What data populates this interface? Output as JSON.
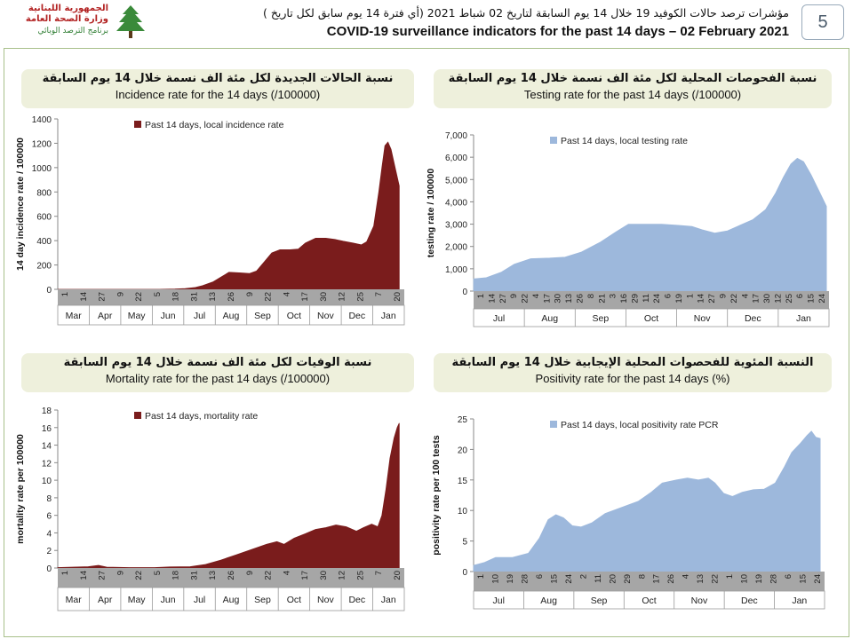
{
  "header": {
    "logo_line1": "الجمهورية اللبنانية",
    "logo_line2": "وزارة الصحة العامة",
    "logo_line3": "برنامج الترصد الوبائي",
    "title_ar": "مؤشرات ترصد حالات الكوفيد 19 خلال 14 يوم السابقة لتاريخ 02 شباط 2021 (أي فترة 14 يوم سابق لكل تاريخ )",
    "title_en": "COVID-19 surveillance indicators for the past 14 days – 02 February 2021",
    "page_number": "5"
  },
  "panels": {
    "incidence": {
      "title_ar": "نسبة الحالات الجديدة لكل مئة الف نسمة خلال 14 يوم السابقة",
      "title_en": "Incidence rate for the 14 days  (/100000)"
    },
    "testing": {
      "title_ar": "نسبة الفحوصات المحلية لكل مئة الف نسمة خلال 14 يوم السابقة",
      "title_en": "Testing rate for the past 14 days (/100000)"
    },
    "mortality": {
      "title_ar": "نسبة الوفيات لكل مئة الف نسمة خلال 14 يوم السابقة",
      "title_en": "Mortality rate for the past 14 days (/100000)"
    },
    "positivity": {
      "title_ar": "النسبة المئوية للفحصوات المحلية الإيجابية خلال 14 يوم السابقة",
      "title_en": "Positivity rate for the past 14 days (%)"
    }
  },
  "chart_data": [
    {
      "id": "incidence",
      "type": "area",
      "color": "#7a1c1c",
      "ylabel": "14 day incidence rate  / 100000",
      "ylim": [
        0,
        1400
      ],
      "yticks": [
        0,
        200,
        400,
        600,
        800,
        1000,
        1200,
        1400
      ],
      "legend": "Past 14 days, local incidence rate",
      "legend_position": "top-left",
      "x_day_labels": [
        "1",
        "14",
        "27",
        "9",
        "22",
        "5",
        "18",
        "31",
        "13",
        "26",
        "9",
        "22",
        "4",
        "17",
        "30",
        "12",
        "25",
        "7",
        "20"
      ],
      "months": [
        "Mar",
        "Apr",
        "May",
        "Jun",
        "Jul",
        "Aug",
        "Sep",
        "Oct",
        "Nov",
        "Dec",
        "Jan"
      ],
      "points": [
        [
          0,
          0
        ],
        [
          100,
          0
        ],
        [
          115,
          2
        ],
        [
          125,
          6
        ],
        [
          135,
          15
        ],
        [
          142,
          30
        ],
        [
          152,
          60
        ],
        [
          160,
          100
        ],
        [
          168,
          140
        ],
        [
          180,
          135
        ],
        [
          188,
          130
        ],
        [
          195,
          150
        ],
        [
          203,
          230
        ],
        [
          210,
          300
        ],
        [
          218,
          325
        ],
        [
          228,
          325
        ],
        [
          236,
          330
        ],
        [
          243,
          380
        ],
        [
          253,
          420
        ],
        [
          263,
          420
        ],
        [
          272,
          410
        ],
        [
          280,
          395
        ],
        [
          290,
          380
        ],
        [
          298,
          365
        ],
        [
          303,
          390
        ],
        [
          310,
          520
        ],
        [
          315,
          800
        ],
        [
          318,
          1000
        ],
        [
          321,
          1180
        ],
        [
          324,
          1210
        ],
        [
          327,
          1150
        ],
        [
          331,
          1000
        ],
        [
          335,
          850
        ]
      ]
    },
    {
      "id": "testing",
      "type": "area",
      "color": "#9db8dc",
      "ylabel": "testing rate / 100000",
      "ylim": [
        0,
        7000
      ],
      "yticks": [
        0,
        1000,
        2000,
        3000,
        4000,
        5000,
        6000,
        7000
      ],
      "ytick_labels": [
        "0",
        "1,000",
        "2,000",
        "3,000",
        "4,000",
        "5,000",
        "6,000",
        "7,000"
      ],
      "legend": "Past 14 days, local testing rate",
      "legend_position": "top-left",
      "x_day_labels": [
        "1",
        "14",
        "27",
        "9",
        "22",
        "4",
        "17",
        "30",
        "13",
        "26",
        "8",
        "21",
        "3",
        "16",
        "29",
        "11",
        "24",
        "6",
        "19",
        "1",
        "14",
        "27",
        "9",
        "22",
        "4",
        "17",
        "30",
        "12",
        "25",
        "6",
        "15",
        "24"
      ],
      "months": [
        "Jul",
        "Aug",
        "Sep",
        "Oct",
        "Nov",
        "Dec",
        "Jan"
      ],
      "points": [
        [
          0,
          550
        ],
        [
          10,
          600
        ],
        [
          22,
          850
        ],
        [
          32,
          1200
        ],
        [
          45,
          1450
        ],
        [
          60,
          1480
        ],
        [
          72,
          1520
        ],
        [
          85,
          1750
        ],
        [
          100,
          2200
        ],
        [
          112,
          2650
        ],
        [
          122,
          3000
        ],
        [
          135,
          3000
        ],
        [
          148,
          3000
        ],
        [
          160,
          2950
        ],
        [
          172,
          2900
        ],
        [
          180,
          2750
        ],
        [
          190,
          2600
        ],
        [
          200,
          2700
        ],
        [
          210,
          2950
        ],
        [
          220,
          3200
        ],
        [
          230,
          3650
        ],
        [
          238,
          4400
        ],
        [
          244,
          5100
        ],
        [
          250,
          5700
        ],
        [
          255,
          5950
        ],
        [
          260,
          5800
        ],
        [
          266,
          5200
        ],
        [
          272,
          4500
        ],
        [
          278,
          3800
        ]
      ]
    },
    {
      "id": "mortality",
      "type": "area",
      "color": "#7a1c1c",
      "ylabel": "mortality rate per 100000",
      "ylim": [
        0,
        18
      ],
      "yticks": [
        0,
        2,
        4,
        6,
        8,
        10,
        12,
        14,
        16,
        18
      ],
      "legend": "Past 14 days, mortality rate",
      "legend_position": "top-left",
      "x_day_labels": [
        "1",
        "14",
        "27",
        "9",
        "22",
        "5",
        "18",
        "31",
        "13",
        "26",
        "9",
        "22",
        "4",
        "17",
        "30",
        "12",
        "25",
        "7",
        "20"
      ],
      "months": [
        "Mar",
        "Apr",
        "May",
        "Jun",
        "Jul",
        "Aug",
        "Sep",
        "Oct",
        "Nov",
        "Dec",
        "Jan"
      ],
      "points": [
        [
          0,
          0.05
        ],
        [
          30,
          0.15
        ],
        [
          40,
          0.3
        ],
        [
          48,
          0.1
        ],
        [
          70,
          0.05
        ],
        [
          95,
          0.05
        ],
        [
          110,
          0.12
        ],
        [
          130,
          0.15
        ],
        [
          145,
          0.4
        ],
        [
          160,
          0.9
        ],
        [
          175,
          1.5
        ],
        [
          190,
          2.1
        ],
        [
          205,
          2.7
        ],
        [
          215,
          3.0
        ],
        [
          222,
          2.7
        ],
        [
          232,
          3.4
        ],
        [
          243,
          3.9
        ],
        [
          253,
          4.4
        ],
        [
          263,
          4.6
        ],
        [
          273,
          4.9
        ],
        [
          283,
          4.7
        ],
        [
          293,
          4.2
        ],
        [
          300,
          4.6
        ],
        [
          308,
          5.0
        ],
        [
          314,
          4.7
        ],
        [
          318,
          6.0
        ],
        [
          322,
          9.0
        ],
        [
          326,
          12.5
        ],
        [
          330,
          14.8
        ],
        [
          333,
          16.0
        ],
        [
          335,
          16.5
        ]
      ]
    },
    {
      "id": "positivity",
      "type": "area",
      "color": "#9db8dc",
      "ylabel": "positivity rate per 100 tests",
      "ylim": [
        0,
        25
      ],
      "yticks": [
        0,
        5,
        10,
        15,
        20,
        25
      ],
      "legend": "Past 14 days, local positivity rate PCR",
      "legend_position": "top-left",
      "x_day_labels": [
        "1",
        "10",
        "19",
        "28",
        "6",
        "15",
        "24",
        "2",
        "11",
        "20",
        "29",
        "8",
        "17",
        "26",
        "4",
        "13",
        "22",
        "1",
        "10",
        "19",
        "28",
        "6",
        "15",
        "24"
      ],
      "months": [
        "Jul",
        "Aug",
        "Sep",
        "Oct",
        "Nov",
        "Dec",
        "Jan"
      ],
      "points": [
        [
          0,
          1.0
        ],
        [
          10,
          1.5
        ],
        [
          20,
          2.3
        ],
        [
          35,
          2.3
        ],
        [
          50,
          3.0
        ],
        [
          60,
          5.5
        ],
        [
          68,
          8.5
        ],
        [
          75,
          9.3
        ],
        [
          82,
          8.8
        ],
        [
          90,
          7.5
        ],
        [
          98,
          7.3
        ],
        [
          108,
          8.0
        ],
        [
          120,
          9.5
        ],
        [
          135,
          10.5
        ],
        [
          150,
          11.5
        ],
        [
          162,
          13.0
        ],
        [
          172,
          14.5
        ],
        [
          185,
          15.0
        ],
        [
          195,
          15.3
        ],
        [
          205,
          15.0
        ],
        [
          214,
          15.3
        ],
        [
          220,
          14.5
        ],
        [
          228,
          12.8
        ],
        [
          236,
          12.3
        ],
        [
          245,
          13.0
        ],
        [
          255,
          13.4
        ],
        [
          265,
          13.5
        ],
        [
          275,
          14.5
        ],
        [
          283,
          17.0
        ],
        [
          290,
          19.5
        ],
        [
          298,
          21.0
        ],
        [
          304,
          22.3
        ],
        [
          308,
          23.0
        ],
        [
          312,
          22.0
        ],
        [
          316,
          21.8
        ]
      ]
    }
  ]
}
